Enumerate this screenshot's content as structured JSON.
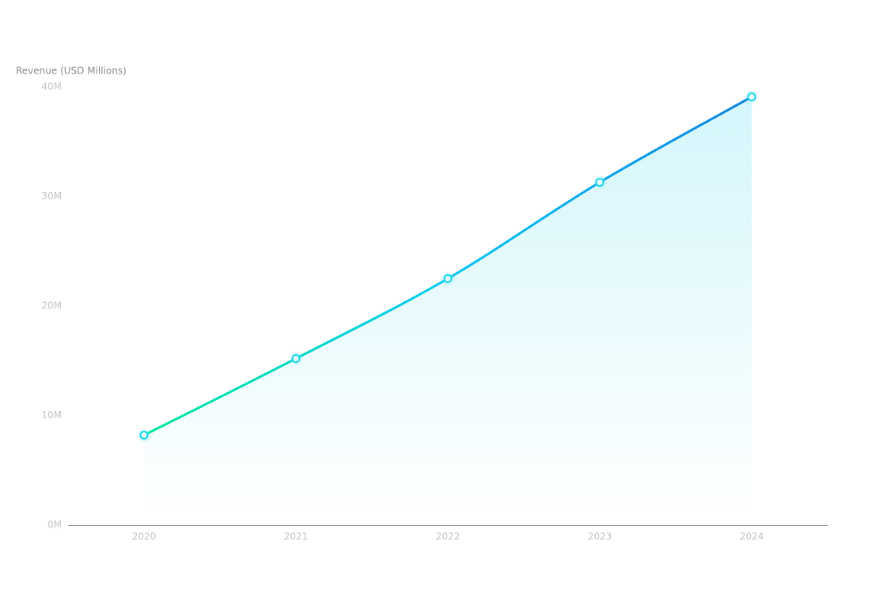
{
  "chart_data": {
    "type": "line",
    "y_axis_label": "Revenue (USD Millions)",
    "categories": [
      "2020",
      "2021",
      "2022",
      "2023",
      "2024"
    ],
    "values": [
      8.2,
      15.2,
      22.5,
      31.3,
      39.1
    ],
    "line_colors": [
      "#00e89c",
      "#00c8f0",
      "#0a80e4"
    ],
    "area_colors": [
      "#d4f6fb",
      "#ffffff"
    ],
    "marker_color": "#0fd8ee",
    "ylim": [
      0,
      40
    ],
    "yticks": [
      {
        "value": 0,
        "label": "0M"
      },
      {
        "value": 10,
        "label": "10M"
      },
      {
        "value": 20,
        "label": "20M"
      },
      {
        "value": 30,
        "label": "30M"
      },
      {
        "value": 40,
        "label": "40M"
      }
    ],
    "grid": false
  }
}
